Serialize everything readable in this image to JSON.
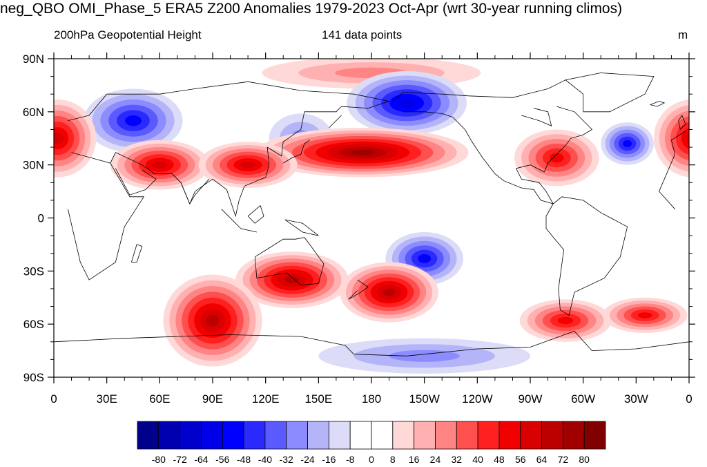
{
  "title": "neg_QBO OMI_Phase_5 ERA5 Z200 Anomalies 1979-2023 Oct-Apr (wrt 30-year running climos)",
  "left_subtitle": "200hPa Geopotential Height",
  "center_subtitle": "141 data points",
  "units": "m",
  "lat_labels": [
    "90N",
    "60N",
    "30N",
    "0",
    "30S",
    "60S",
    "90S"
  ],
  "lon_labels": [
    "0",
    "30E",
    "60E",
    "90E",
    "120E",
    "150E",
    "180",
    "150W",
    "120W",
    "90W",
    "60W",
    "30W",
    "0"
  ],
  "colorbar": {
    "labels": [
      "-80",
      "-72",
      "-64",
      "-56",
      "-48",
      "-40",
      "-32",
      "-24",
      "-16",
      "-8",
      "0",
      "8",
      "16",
      "24",
      "32",
      "40",
      "48",
      "56",
      "64",
      "72",
      "80"
    ],
    "colors": [
      "#00008a",
      "#0000b0",
      "#0000cc",
      "#0000e8",
      "#0000ff",
      "#2a2aff",
      "#5a5aff",
      "#8c8cff",
      "#b4b4f8",
      "#dcdcf8",
      "#ffffff",
      "#ffffff",
      "#ffd8d8",
      "#ffb0b0",
      "#ff8484",
      "#ff5050",
      "#ff2020",
      "#f00000",
      "#d80000",
      "#bc0000",
      "#a00000",
      "#800000"
    ]
  },
  "anomaly_features": [
    {
      "name": "north-polar-positive-band",
      "lon": 180,
      "lat": 82,
      "value": 24
    },
    {
      "name": "ural-siberia-low",
      "lon": 45,
      "lat": 55,
      "value": -48
    },
    {
      "name": "north-pacific-low",
      "lon": 200,
      "lat": 65,
      "value": -56
    },
    {
      "name": "east-asia-low",
      "lon": 140,
      "lat": 45,
      "value": -24
    },
    {
      "name": "north-pacific-subtropical-high",
      "lon": 175,
      "lat": 37,
      "value": 72
    },
    {
      "name": "middle-east-high",
      "lon": 60,
      "lat": 30,
      "value": 56
    },
    {
      "name": "tibet-high",
      "lon": 110,
      "lat": 30,
      "value": 56
    },
    {
      "name": "europe-atlantic-high",
      "lon": 2,
      "lat": 45,
      "value": 56
    },
    {
      "name": "north-atlantic-low",
      "lon": 325,
      "lat": 42,
      "value": -48
    },
    {
      "name": "eastern-north-america-high",
      "lon": 285,
      "lat": 34,
      "value": 48
    },
    {
      "name": "south-pacific-low",
      "lon": 210,
      "lat": -23,
      "value": -48
    },
    {
      "name": "australia-high",
      "lon": 135,
      "lat": -35,
      "value": 64
    },
    {
      "name": "southern-indian-ocean-high",
      "lon": 90,
      "lat": -58,
      "value": 64
    },
    {
      "name": "south-pacific-high",
      "lon": 190,
      "lat": -42,
      "value": 64
    },
    {
      "name": "south-atlantic-high",
      "lon": 290,
      "lat": -58,
      "value": 48
    },
    {
      "name": "south-atlantic-east-high",
      "lon": 335,
      "lat": -55,
      "value": 48
    },
    {
      "name": "antarctic-low",
      "lon": 210,
      "lat": -78,
      "value": -24
    }
  ]
}
